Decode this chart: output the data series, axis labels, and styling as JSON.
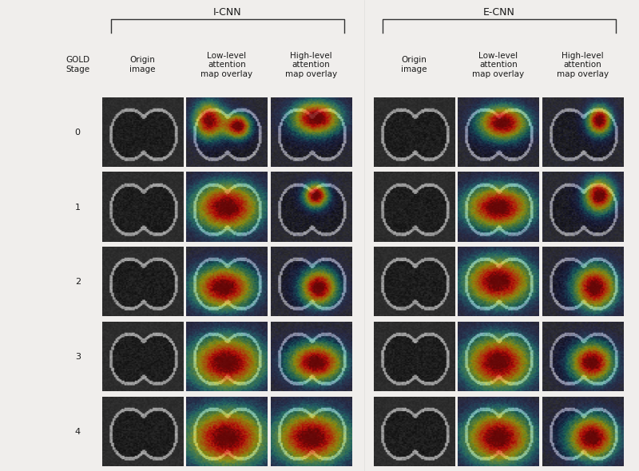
{
  "title_left": "I-CNN",
  "title_right": "E-CNN",
  "gold_label": "GOLD\nStage",
  "gold_stages": [
    "0",
    "1",
    "2",
    "3",
    "4"
  ],
  "col_headers_left": [
    "Origin\nimage",
    "Low-level\nattention\nmap overlay",
    "High-level\nattention\nmap overlay"
  ],
  "col_headers_right": [
    "Origin\nimage",
    "Low-level\nattention\nmap overlay",
    "High-level\nattention\nmap overlay"
  ],
  "background_color": "#f0eeec",
  "text_color": "#1a1a1a",
  "header_fontsize": 7.5,
  "stage_fontsize": 8,
  "bracket_color": "#333333",
  "n_rows": 5,
  "n_cols_per_side": 3,
  "fig_width": 8.0,
  "fig_height": 5.9
}
